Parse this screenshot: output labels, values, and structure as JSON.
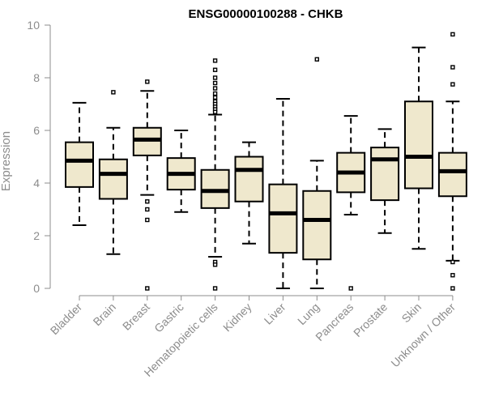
{
  "chart_data": {
    "type": "boxplot",
    "title": "ENSG00000100288 - CHKB",
    "xlabel": "",
    "ylabel": "Expression",
    "ylim": [
      0,
      10
    ],
    "yticks": [
      0,
      2,
      4,
      6,
      8,
      10
    ],
    "grid": false,
    "categories": [
      "Bladder",
      "Brain",
      "Breast",
      "Gastric",
      "Hematopoietic cells",
      "Kidney",
      "Liver",
      "Lung",
      "Pancreas",
      "Prostate",
      "Skin",
      "Unknown / Other"
    ],
    "boxes": [
      {
        "category": "Bladder",
        "whisker_low": 2.4,
        "q1": 3.85,
        "median": 4.85,
        "q3": 5.55,
        "whisker_high": 7.05,
        "outliers": []
      },
      {
        "category": "Brain",
        "whisker_low": 1.3,
        "q1": 3.4,
        "median": 4.35,
        "q3": 4.9,
        "whisker_high": 6.1,
        "outliers": [
          7.45
        ]
      },
      {
        "category": "Breast",
        "whisker_low": 3.55,
        "q1": 5.05,
        "median": 5.65,
        "q3": 6.1,
        "whisker_high": 7.5,
        "outliers": [
          7.85,
          3.3,
          3.0,
          2.6,
          0.0
        ]
      },
      {
        "category": "Gastric",
        "whisker_low": 2.9,
        "q1": 3.75,
        "median": 4.35,
        "q3": 4.95,
        "whisker_high": 6.0,
        "outliers": []
      },
      {
        "category": "Hematopoietic cells",
        "whisker_low": 1.2,
        "q1": 3.05,
        "median": 3.7,
        "q3": 4.5,
        "whisker_high": 6.6,
        "outliers": [
          8.65,
          8.3,
          8.0,
          7.8,
          7.6,
          7.4,
          7.25,
          7.1,
          7.0,
          6.9,
          6.8,
          6.7,
          1.0,
          0.9,
          0.0
        ]
      },
      {
        "category": "Kidney",
        "whisker_low": 1.7,
        "q1": 3.3,
        "median": 4.5,
        "q3": 5.0,
        "whisker_high": 5.55,
        "outliers": []
      },
      {
        "category": "Liver",
        "whisker_low": 0.0,
        "q1": 1.35,
        "median": 2.85,
        "q3": 3.95,
        "whisker_high": 7.2,
        "outliers": []
      },
      {
        "category": "Lung",
        "whisker_low": 0.0,
        "q1": 1.1,
        "median": 2.6,
        "q3": 3.7,
        "whisker_high": 4.85,
        "outliers": [
          8.7
        ]
      },
      {
        "category": "Pancreas",
        "whisker_low": 2.8,
        "q1": 3.65,
        "median": 4.4,
        "q3": 5.15,
        "whisker_high": 6.55,
        "outliers": [
          0.0
        ]
      },
      {
        "category": "Prostate",
        "whisker_low": 2.1,
        "q1": 3.35,
        "median": 4.9,
        "q3": 5.35,
        "whisker_high": 6.05,
        "outliers": []
      },
      {
        "category": "Skin",
        "whisker_low": 1.5,
        "q1": 3.8,
        "median": 5.0,
        "q3": 7.1,
        "whisker_high": 9.15,
        "outliers": []
      },
      {
        "category": "Unknown / Other",
        "whisker_low": 1.05,
        "q1": 3.5,
        "median": 4.45,
        "q3": 5.15,
        "whisker_high": 7.1,
        "outliers": [
          9.65,
          8.4,
          7.75,
          1.0,
          0.5,
          0.0
        ]
      }
    ],
    "box_fill": "#efe8cd",
    "box_stroke": "#000000",
    "axis_color": "#8c8c8c"
  }
}
